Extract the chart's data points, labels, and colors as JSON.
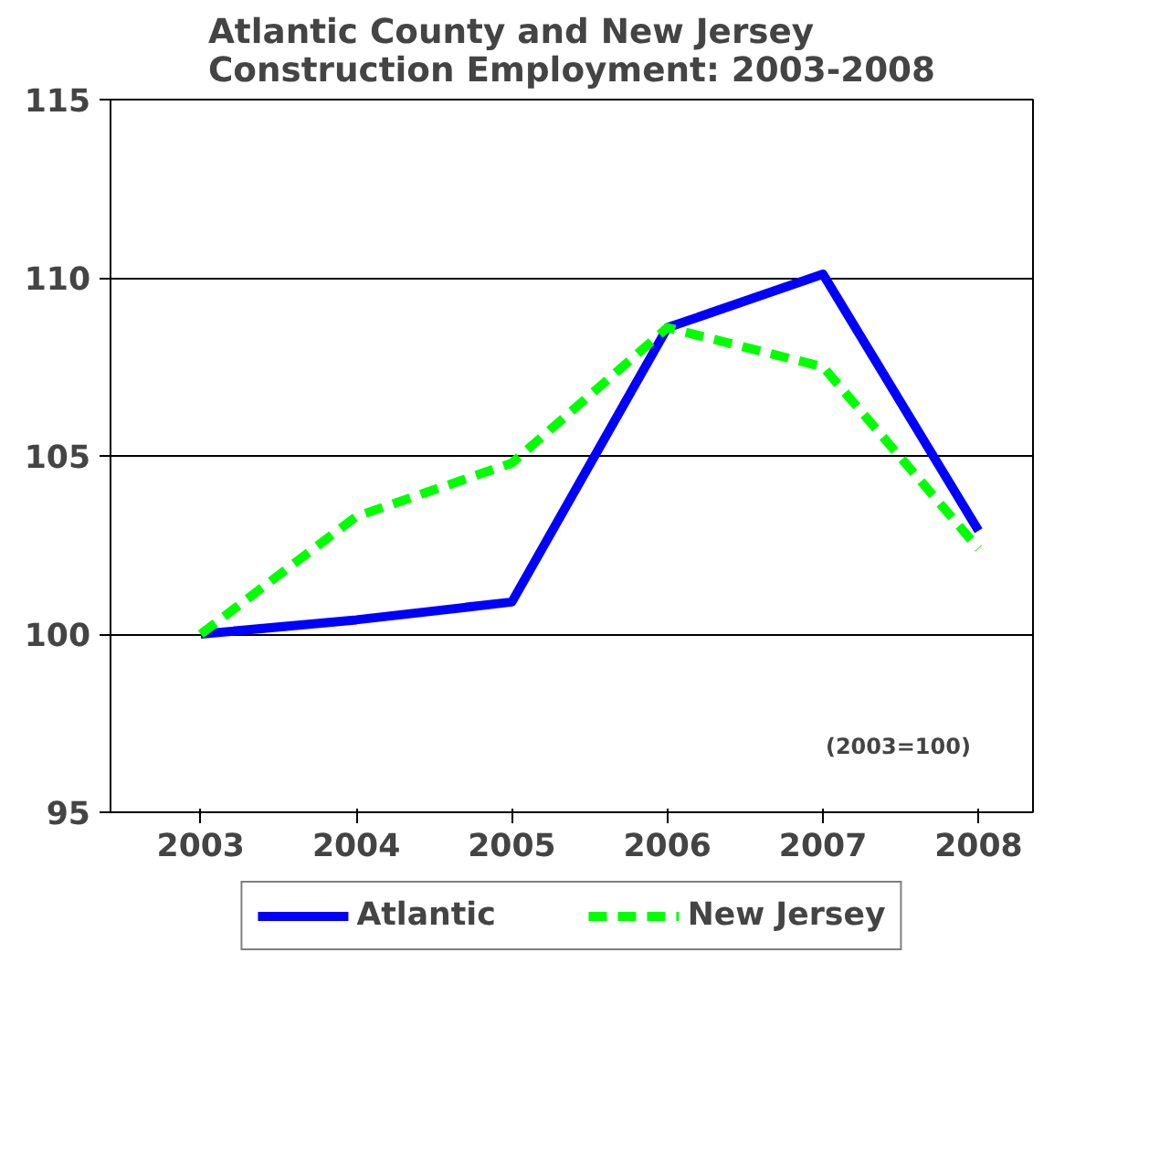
{
  "chart_data": {
    "type": "line",
    "title": "Atlantic County and New Jersey\nConstruction Employment: 2003-2008",
    "categories": [
      "2003",
      "2004",
      "2005",
      "2006",
      "2007",
      "2008"
    ],
    "series": [
      {
        "name": "Atlantic",
        "color": "#0000ff",
        "line_style": "solid",
        "values": [
          100,
          100.4,
          100.9,
          108.6,
          110.1,
          102.9
        ]
      },
      {
        "name": "New Jersey",
        "color": "#00ff00",
        "line_style": "dashed",
        "values": [
          100,
          103.3,
          104.8,
          108.6,
          107.5,
          102.4
        ]
      }
    ],
    "ylim": [
      95,
      115
    ],
    "yticks": [
      95,
      100,
      105,
      110,
      115
    ],
    "grid": "y",
    "legend": "bottom",
    "annotations": [
      "(2003=100)"
    ]
  }
}
